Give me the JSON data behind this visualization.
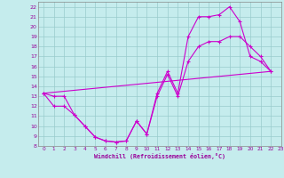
{
  "xlabel": "Windchill (Refroidissement éolien,°C)",
  "xlim": [
    -0.5,
    23
  ],
  "ylim": [
    8,
    22.5
  ],
  "xticks": [
    0,
    1,
    2,
    3,
    4,
    5,
    6,
    7,
    8,
    9,
    10,
    11,
    12,
    13,
    14,
    15,
    16,
    17,
    18,
    19,
    20,
    21,
    22,
    23
  ],
  "yticks": [
    8,
    9,
    10,
    11,
    12,
    13,
    14,
    15,
    16,
    17,
    18,
    19,
    20,
    21,
    22
  ],
  "bg_color": "#c5eced",
  "line_color": "#cc00cc",
  "grid_color": "#99cccc",
  "line1_x": [
    0,
    1,
    2,
    3,
    4,
    5,
    6,
    7,
    8,
    9,
    10,
    11,
    12,
    13,
    14,
    15,
    16,
    17,
    18,
    19,
    20,
    21,
    22
  ],
  "line1_y": [
    13.3,
    13.0,
    13.0,
    11.1,
    10.0,
    8.9,
    8.5,
    8.4,
    8.5,
    10.5,
    9.2,
    13.3,
    15.5,
    13.3,
    19.0,
    21.0,
    21.0,
    21.2,
    22.0,
    20.5,
    17.0,
    16.5,
    15.5
  ],
  "line2_x": [
    0,
    1,
    2,
    3,
    4,
    5,
    6,
    7,
    8,
    9,
    10,
    11,
    12,
    13,
    14,
    15,
    16,
    17,
    18,
    19,
    20,
    21,
    22
  ],
  "line2_y": [
    13.3,
    12.0,
    12.0,
    11.1,
    10.0,
    8.9,
    8.5,
    8.4,
    8.5,
    10.5,
    9.2,
    13.0,
    15.2,
    13.0,
    16.5,
    18.0,
    18.5,
    18.5,
    19.0,
    19.0,
    18.0,
    17.0,
    15.5
  ],
  "line3_x": [
    0,
    22
  ],
  "line3_y": [
    13.3,
    15.5
  ]
}
